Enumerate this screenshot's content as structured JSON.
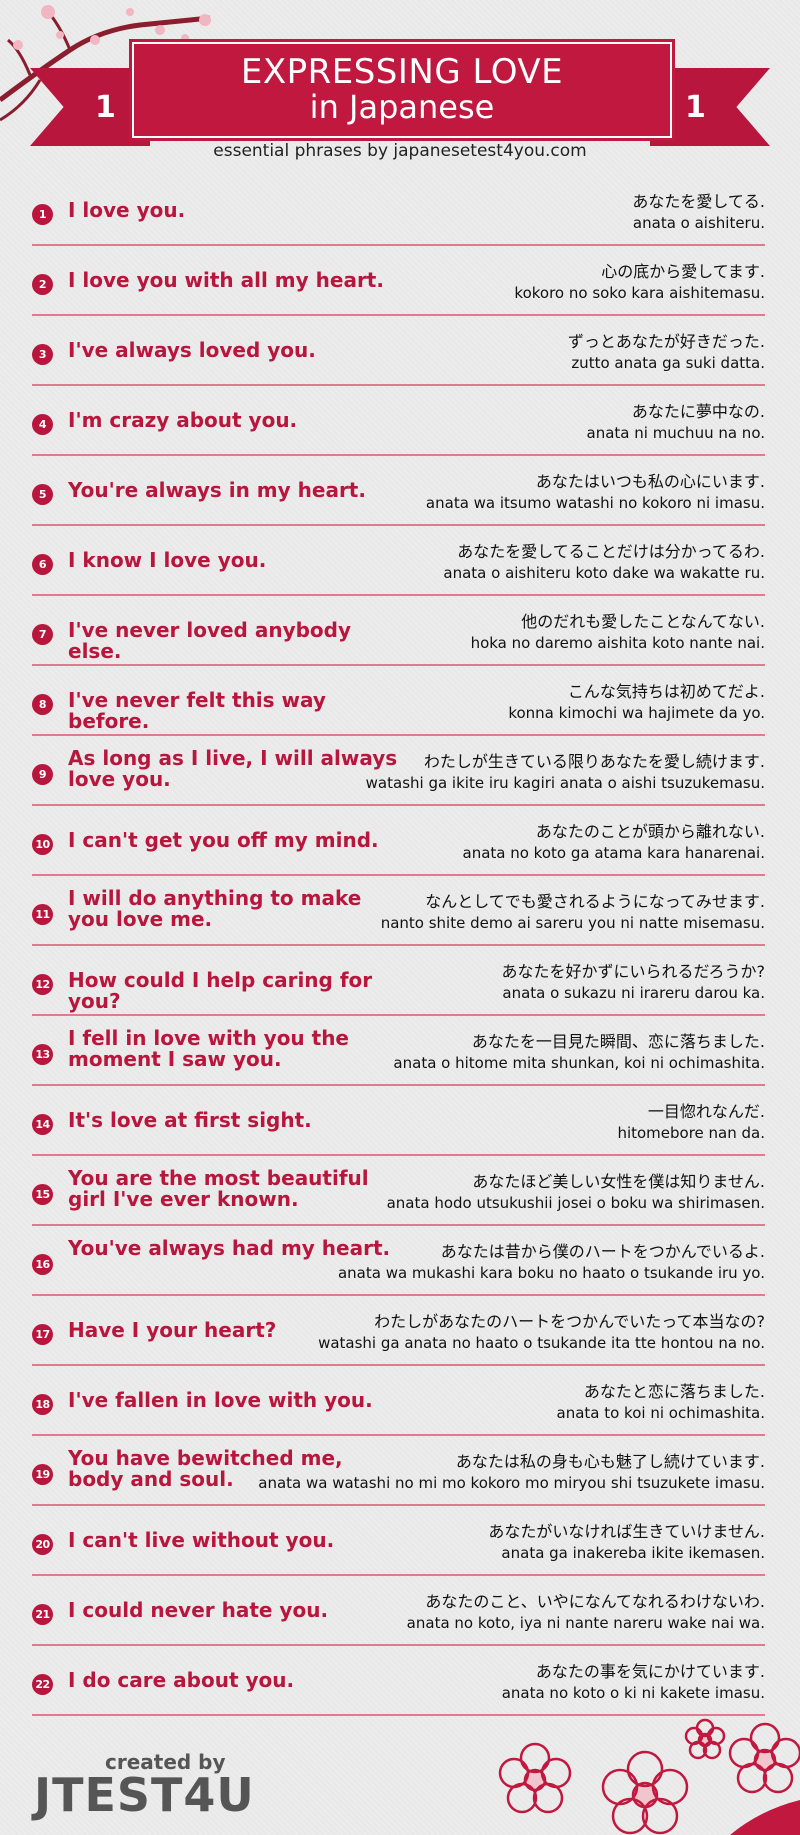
{
  "header": {
    "title_line1": "EXPRESSING LOVE",
    "title_line2": "in Japanese",
    "ribbon_left": "1",
    "ribbon_right": "1",
    "subtitle": "essential phrases by japanesetest4you.com"
  },
  "phrases": [
    {
      "num": "1",
      "en": "I love you.",
      "jp": "あなたを愛してる.",
      "romaji": "anata o aishiteru."
    },
    {
      "num": "2",
      "en": "I love you with all my heart.",
      "jp": "心の底から愛してます.",
      "romaji": "kokoro no soko kara aishitemasu."
    },
    {
      "num": "3",
      "en": "I've always loved you.",
      "jp": "ずっとあなたが好きだった.",
      "romaji": "zutto anata ga suki datta."
    },
    {
      "num": "4",
      "en": "I'm crazy about you.",
      "jp": "あなたに夢中なの.",
      "romaji": "anata ni muchuu na no."
    },
    {
      "num": "5",
      "en": "You're always in my heart.",
      "jp": "あなたはいつも私の心にいます.",
      "romaji": "anata wa itsumo watashi no kokoro ni imasu."
    },
    {
      "num": "6",
      "en": "I know I love you.",
      "jp": "あなたを愛してることだけは分かってるわ.",
      "romaji": "anata o aishiteru koto dake wa wakatte ru."
    },
    {
      "num": "7",
      "en": "I've never loved anybody else.",
      "jp": "他のだれも愛したことなんてない.",
      "romaji": "hoka no daremo aishita koto nante nai."
    },
    {
      "num": "8",
      "en": "I've never felt this way before.",
      "jp": "こんな気持ちは初めてだよ.",
      "romaji": "konna kimochi wa hajimete da yo."
    },
    {
      "num": "9",
      "en": "As long as I live, I will always love you.",
      "jp": "わたしが生きている限りあなたを愛し続けます.",
      "romaji": "watashi ga ikite iru kagiri anata o aishi tsuzukemasu."
    },
    {
      "num": "10",
      "en": "I can't get you off my mind.",
      "jp": "あなたのことが頭から離れない.",
      "romaji": "anata no koto ga atama kara hanarenai."
    },
    {
      "num": "11",
      "en": "I will do anything to make you love me.",
      "jp": "なんとしてでも愛されるようになってみせます.",
      "romaji": "nanto shite demo ai sareru you ni natte misemasu."
    },
    {
      "num": "12",
      "en": "How could I help caring for you?",
      "jp": "あなたを好かずにいられるだろうか?",
      "romaji": "anata o sukazu ni irareru darou ka."
    },
    {
      "num": "13",
      "en": "I fell in love with you the moment I saw you.",
      "jp": "あなたを一目見た瞬間、恋に落ちました.",
      "romaji": "anata o hitome mita shunkan, koi ni ochimashita."
    },
    {
      "num": "14",
      "en": "It's love at first sight.",
      "jp": "一目惚れなんだ.",
      "romaji": "hitomebore nan da."
    },
    {
      "num": "15",
      "en": "You are the most beautiful girl I've ever known.",
      "jp": "あなたほど美しい女性を僕は知りません.",
      "romaji": "anata hodo utsukushii josei o boku wa shirimasen."
    },
    {
      "num": "16",
      "en": "You've always had my heart.",
      "jp": "あなたは昔から僕のハートをつかんでいるよ.",
      "romaji": "anata wa mukashi kara boku no haato o tsukande iru yo."
    },
    {
      "num": "17",
      "en": "Have I your heart?",
      "jp": "わたしがあなたのハートをつかんでいたって本当なの?",
      "romaji": "watashi ga anata no haato o tsukande ita tte hontou na no."
    },
    {
      "num": "18",
      "en": "I've fallen in love with you.",
      "jp": "あなたと恋に落ちました.",
      "romaji": "anata to koi ni ochimashita."
    },
    {
      "num": "19",
      "en": "You have bewitched me, body and soul.",
      "jp": "あなたは私の身も心も魅了し続けています.",
      "romaji": "anata wa watashi no mi mo kokoro mo miryou shi tsuzukete imasu."
    },
    {
      "num": "20",
      "en": "I can't live without you.",
      "jp": "あなたがいなければ生きていけません.",
      "romaji": "anata ga inakereba ikite ikemasen."
    },
    {
      "num": "21",
      "en": "I could never hate you.",
      "jp": "あなたのこと、いやになんてなれるわけないわ.",
      "romaji": "anata no koto, iya ni nante nareru wake nai wa."
    },
    {
      "num": "22",
      "en": "I do care about you.",
      "jp": "あなたの事を気にかけています.",
      "romaji": "anata no koto o ki ni kakete imasu."
    }
  ],
  "footer": {
    "created_by": "created by",
    "logo": "JTEST4U"
  },
  "colors": {
    "accent": "#b8163c",
    "divider": "#e07a8e",
    "background": "#ececec"
  }
}
